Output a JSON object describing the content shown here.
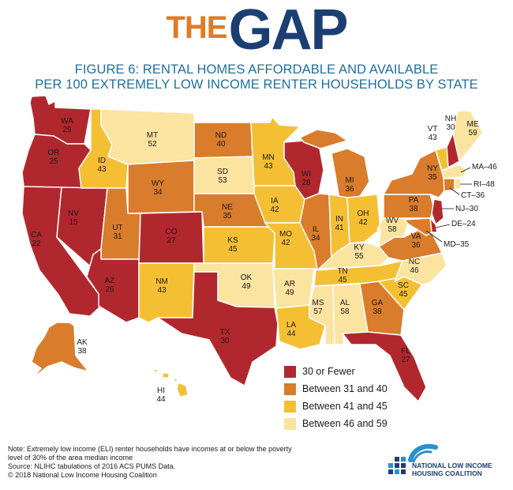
{
  "brand": {
    "the": "THE",
    "gap": "GAP"
  },
  "title": {
    "line1": "FIGURE 6: RENTAL HOMES AFFORDABLE AND AVAILABLE",
    "line2": "PER 100 EXTREMELY LOW INCOME RENTER HOUSEHOLDS BY STATE"
  },
  "colors": {
    "cat1": "#b0282e",
    "cat2": "#d97c2b",
    "cat3": "#f5bf34",
    "cat4": "#fbe3a0"
  },
  "legend": [
    {
      "label": "30 or Fewer",
      "color": "#b0282e"
    },
    {
      "label": "Between 31 and 40",
      "color": "#d97c2b"
    },
    {
      "label": "Between 41 and 45",
      "color": "#f5bf34"
    },
    {
      "label": "Between 46 and 59",
      "color": "#fbe3a0"
    }
  ],
  "states": [
    {
      "abbr": "WA",
      "value": 29
    },
    {
      "abbr": "OR",
      "value": 25
    },
    {
      "abbr": "CA",
      "value": 22
    },
    {
      "abbr": "NV",
      "value": 15
    },
    {
      "abbr": "ID",
      "value": 43
    },
    {
      "abbr": "MT",
      "value": 52
    },
    {
      "abbr": "WY",
      "value": 34
    },
    {
      "abbr": "UT",
      "value": 31
    },
    {
      "abbr": "AZ",
      "value": 26
    },
    {
      "abbr": "CO",
      "value": 27
    },
    {
      "abbr": "NM",
      "value": 43
    },
    {
      "abbr": "ND",
      "value": 40
    },
    {
      "abbr": "SD",
      "value": 53
    },
    {
      "abbr": "NE",
      "value": 35
    },
    {
      "abbr": "KS",
      "value": 45
    },
    {
      "abbr": "OK",
      "value": 49
    },
    {
      "abbr": "TX",
      "value": 30
    },
    {
      "abbr": "MN",
      "value": 43
    },
    {
      "abbr": "IA",
      "value": 42
    },
    {
      "abbr": "MO",
      "value": 42
    },
    {
      "abbr": "AR",
      "value": 49
    },
    {
      "abbr": "LA",
      "value": 44
    },
    {
      "abbr": "WI",
      "value": 28
    },
    {
      "abbr": "IL",
      "value": 34
    },
    {
      "abbr": "MI",
      "value": 36
    },
    {
      "abbr": "IN",
      "value": 41
    },
    {
      "abbr": "OH",
      "value": 42
    },
    {
      "abbr": "KY",
      "value": 55
    },
    {
      "abbr": "TN",
      "value": 45
    },
    {
      "abbr": "MS",
      "value": 57
    },
    {
      "abbr": "AL",
      "value": 58
    },
    {
      "abbr": "GA",
      "value": 38
    },
    {
      "abbr": "FL",
      "value": 27
    },
    {
      "abbr": "SC",
      "value": 45
    },
    {
      "abbr": "NC",
      "value": 46
    },
    {
      "abbr": "VA",
      "value": 36
    },
    {
      "abbr": "WV",
      "value": 58
    },
    {
      "abbr": "PA",
      "value": 38
    },
    {
      "abbr": "NY",
      "value": 35
    },
    {
      "abbr": "VT",
      "value": 43
    },
    {
      "abbr": "NH",
      "value": 30
    },
    {
      "abbr": "ME",
      "value": 59
    },
    {
      "abbr": "MA",
      "value": 46
    },
    {
      "abbr": "RI",
      "value": 48
    },
    {
      "abbr": "CT",
      "value": 36
    },
    {
      "abbr": "NJ",
      "value": 30
    },
    {
      "abbr": "DE",
      "value": 24
    },
    {
      "abbr": "MD",
      "value": 35
    },
    {
      "abbr": "AK",
      "value": 38
    },
    {
      "abbr": "HI",
      "value": 44
    }
  ],
  "callouts": {
    "ma": "MA–46",
    "ri": "RI–48",
    "ct": "CT–36",
    "nj": "NJ–30",
    "de": "DE–24",
    "md": "MD–35"
  },
  "notes": {
    "line1": "Note: Extremely low income (ELI) renter households have incomes at or below the poverty",
    "line2": "level of 30% of the area median income",
    "line3": "Source: NLIHC tabulations of 2016 ACS PUMS Data.",
    "line4": "© 2018 National Low Income Housing Coalition"
  },
  "org": {
    "line1": "NATIONAL LOW INCOME",
    "line2": "HOUSING COALITION"
  }
}
